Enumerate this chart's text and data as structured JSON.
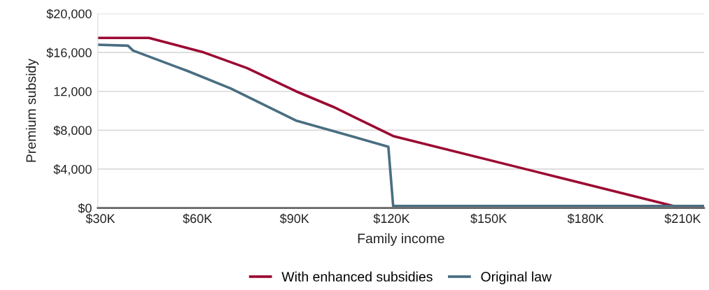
{
  "chart_data": {
    "type": "line",
    "xlabel": "Family income",
    "ylabel": "Premium subsidy",
    "xlim": [
      29.2,
      216.6
    ],
    "xticks": [
      {
        "value": 30,
        "label": "$30K"
      },
      {
        "value": 60,
        "label": "$60K"
      },
      {
        "value": 90,
        "label": "$90K"
      },
      {
        "value": 120,
        "label": "$120K"
      },
      {
        "value": 150,
        "label": "$150K"
      },
      {
        "value": 180,
        "label": "$180K"
      },
      {
        "value": 210,
        "label": "$210K"
      }
    ],
    "ylim": [
      0,
      20000
    ],
    "yticks": [
      {
        "value": 0,
        "label": "$0"
      },
      {
        "value": 4000,
        "label": "$4,000"
      },
      {
        "value": 8000,
        "label": "$8,000"
      },
      {
        "value": 12000,
        "label": "12,000"
      },
      {
        "value": 16000,
        "label": "$16,000"
      },
      {
        "value": 20000,
        "label": "$20,000"
      }
    ],
    "grid": "y",
    "legend": "bottom",
    "marker": "none",
    "line_style": "solid",
    "series": [
      {
        "name": "With enhanced subsidies",
        "color": "#9b0a33",
        "x": [
          29.2,
          45,
          62,
          75.3,
          90.5,
          102,
          120.5,
          207.1,
          216.6
        ],
        "values": [
          17500,
          17500,
          16000,
          14400,
          12000,
          10400,
          7400,
          200,
          200
        ]
      },
      {
        "name": "Original law",
        "color": "#4a6e82",
        "x": [
          29.2,
          38.5,
          40.1,
          56.9,
          70.3,
          90.4,
          119,
          120.5,
          216.6
        ],
        "values": [
          16800,
          16700,
          16200,
          14100,
          12300,
          9000,
          6300,
          200,
          200
        ]
      }
    ]
  }
}
